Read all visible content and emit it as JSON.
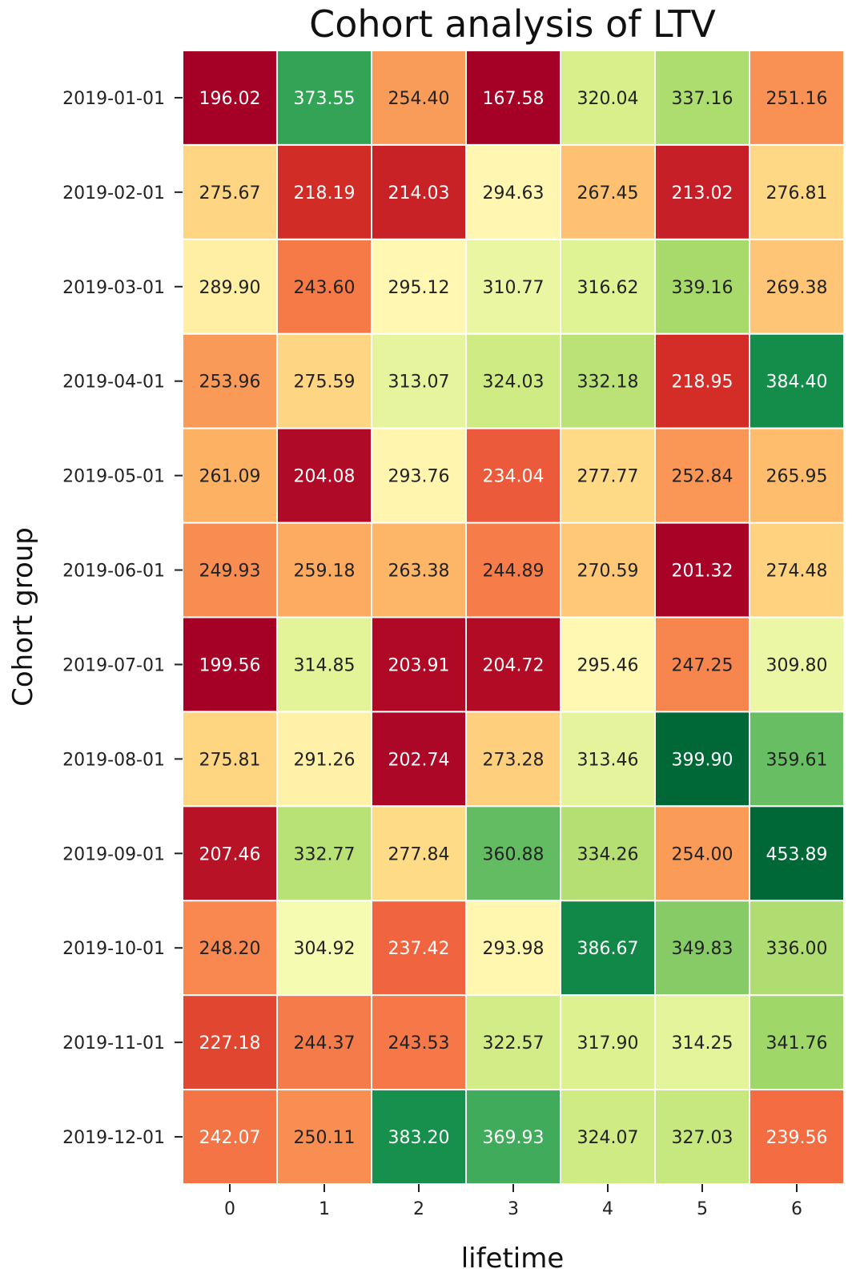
{
  "chart_data": {
    "type": "heatmap",
    "title": "Cohort analysis of LTV",
    "xlabel": "lifetime",
    "ylabel": "Cohort group",
    "x": [
      "0",
      "1",
      "2",
      "3",
      "4",
      "5",
      "6"
    ],
    "y": [
      "2019-01-01",
      "2019-02-01",
      "2019-03-01",
      "2019-04-01",
      "2019-05-01",
      "2019-06-01",
      "2019-07-01",
      "2019-08-01",
      "2019-09-01",
      "2019-10-01",
      "2019-11-01",
      "2019-12-01"
    ],
    "values": [
      [
        "196.02",
        "373.55",
        "254.40",
        "167.58",
        "320.04",
        "337.16",
        "251.16"
      ],
      [
        "275.67",
        "218.19",
        "214.03",
        "294.63",
        "267.45",
        "213.02",
        "276.81"
      ],
      [
        "289.90",
        "243.60",
        "295.12",
        "310.77",
        "316.62",
        "339.16",
        "269.38"
      ],
      [
        "253.96",
        "275.59",
        "313.07",
        "324.03",
        "332.18",
        "218.95",
        "384.40"
      ],
      [
        "261.09",
        "204.08",
        "293.76",
        "234.04",
        "277.77",
        "252.84",
        "265.95"
      ],
      [
        "249.93",
        "259.18",
        "263.38",
        "244.89",
        "270.59",
        "201.32",
        "274.48"
      ],
      [
        "199.56",
        "314.85",
        "203.91",
        "204.72",
        "295.46",
        "247.25",
        "309.80"
      ],
      [
        "275.81",
        "291.26",
        "202.74",
        "273.28",
        "313.46",
        "399.90",
        "359.61"
      ],
      [
        "207.46",
        "332.77",
        "277.84",
        "360.88",
        "334.26",
        "254.00",
        "453.89"
      ],
      [
        "248.20",
        "304.92",
        "237.42",
        "293.98",
        "386.67",
        "349.83",
        "336.00"
      ],
      [
        "227.18",
        "244.37",
        "243.53",
        "322.57",
        "317.90",
        "314.25",
        "341.76"
      ],
      [
        "242.07",
        "250.11",
        "383.20",
        "369.93",
        "324.07",
        "327.03",
        "239.56"
      ]
    ],
    "colormap": "RdYlGn",
    "color_range": [
      200,
      400
    ],
    "cell_border_color": "#ffffff",
    "colorbar": false
  }
}
